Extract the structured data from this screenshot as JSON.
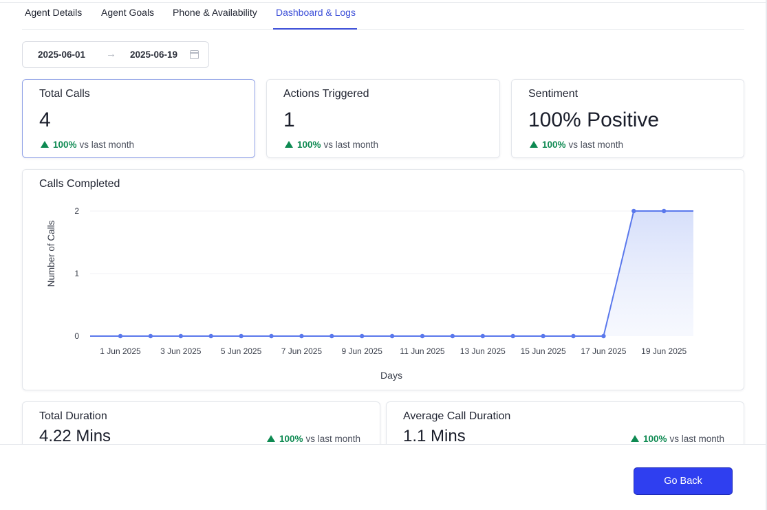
{
  "tabs": [
    {
      "label": "Agent Details"
    },
    {
      "label": "Agent Goals"
    },
    {
      "label": "Phone & Availability"
    },
    {
      "label": "Dashboard & Logs"
    }
  ],
  "active_tab": "Dashboard & Logs",
  "date_range": {
    "start": "2025-06-01",
    "arrow": "→",
    "end": "2025-06-19"
  },
  "cards": {
    "total_calls": {
      "title": "Total Calls",
      "value": "4",
      "pct": "100%",
      "compare": "vs last month"
    },
    "actions_triggered": {
      "title": "Actions Triggered",
      "value": "1",
      "pct": "100%",
      "compare": "vs last month"
    },
    "sentiment": {
      "title": "Sentiment",
      "value": "100% Positive",
      "pct": "100%",
      "compare": "vs last month"
    },
    "total_duration": {
      "title": "Total Duration",
      "value": "4.22 Mins",
      "pct": "100%",
      "compare": "vs last month"
    },
    "avg_duration": {
      "title": "Average Call Duration",
      "value": "1.1 Mins",
      "pct": "100%",
      "compare": "vs last month"
    }
  },
  "chart_data": {
    "type": "area",
    "title": "Calls Completed",
    "xlabel": "Days",
    "ylabel": "Number of Calls",
    "x": [
      "1 Jun 2025",
      "2 Jun 2025",
      "3 Jun 2025",
      "4 Jun 2025",
      "5 Jun 2025",
      "6 Jun 2025",
      "7 Jun 2025",
      "8 Jun 2025",
      "9 Jun 2025",
      "10 Jun 2025",
      "11 Jun 2025",
      "12 Jun 2025",
      "13 Jun 2025",
      "14 Jun 2025",
      "15 Jun 2025",
      "16 Jun 2025",
      "17 Jun 2025",
      "18 Jun 2025",
      "19 Jun 2025"
    ],
    "x_tick_labels": [
      "1 Jun 2025",
      "3 Jun 2025",
      "5 Jun 2025",
      "7 Jun 2025",
      "9 Jun 2025",
      "11 Jun 2025",
      "13 Jun 2025",
      "15 Jun 2025",
      "17 Jun 2025",
      "19 Jun 2025"
    ],
    "values": [
      0,
      0,
      0,
      0,
      0,
      0,
      0,
      0,
      0,
      0,
      0,
      0,
      0,
      0,
      0,
      0,
      0,
      2,
      2
    ],
    "y_ticks": [
      "0",
      "1",
      "2"
    ],
    "ylim": [
      0,
      2
    ],
    "grid": true,
    "legend": "none",
    "line_color": "#5a78ec",
    "fill_color": "#dfe5fb"
  },
  "footer": {
    "go_back_label": "Go Back"
  },
  "colors": {
    "accent": "#3b4ed8",
    "positive": "#0e8a52",
    "button": "#2f3ff0"
  }
}
